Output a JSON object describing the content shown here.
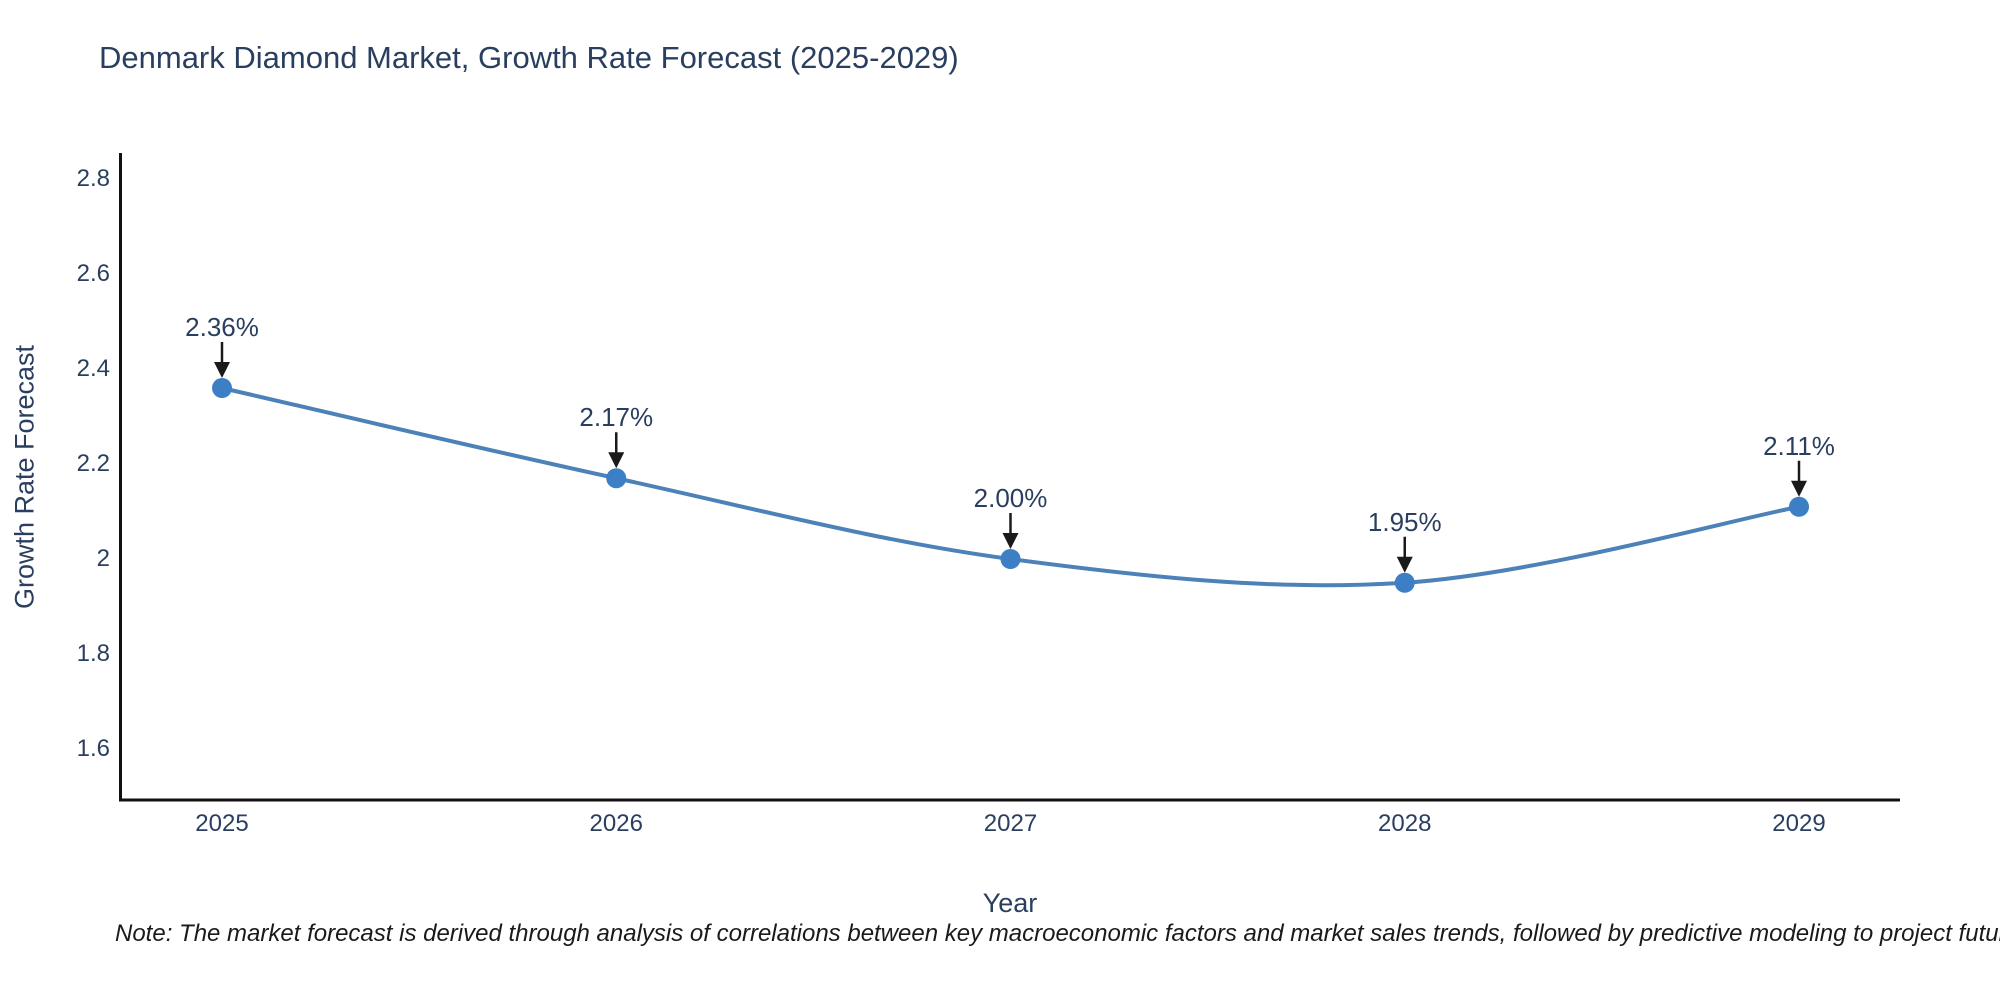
{
  "footnote": {
    "text": "Note: The market forecast is derived through analysis of correlations between key macroeconomic factors and market sales trends, followed by predictive modeling to project future sales"
  },
  "chart_data": {
    "type": "line",
    "title": "Denmark Diamond Market, Growth Rate Forecast (2025-2029)",
    "xlabel": "Year",
    "ylabel": "Growth Rate Forecast",
    "categories": [
      "2025",
      "2026",
      "2027",
      "2028",
      "2029"
    ],
    "values": [
      2.36,
      2.17,
      2.0,
      1.95,
      2.11
    ],
    "point_labels": [
      "2.36%",
      "2.17%",
      "2.00%",
      "1.95%",
      "2.11%"
    ],
    "ytick_values": [
      2.8,
      2.6,
      2.4,
      2.2,
      2.0,
      1.8,
      1.6
    ],
    "ytick_labels": [
      "2.8",
      "2.6",
      "2.4",
      "2.2",
      "2",
      "1.8",
      "1.6"
    ],
    "ylim": [
      1.49,
      2.85
    ],
    "line_shape": "spline",
    "grid": false,
    "legend": "none",
    "colors": {
      "line": "#4d82b8",
      "marker": "#3c7fc4",
      "axis": "#111111",
      "text": "#2a3f5f",
      "arrow": "#1a1a1a"
    }
  }
}
